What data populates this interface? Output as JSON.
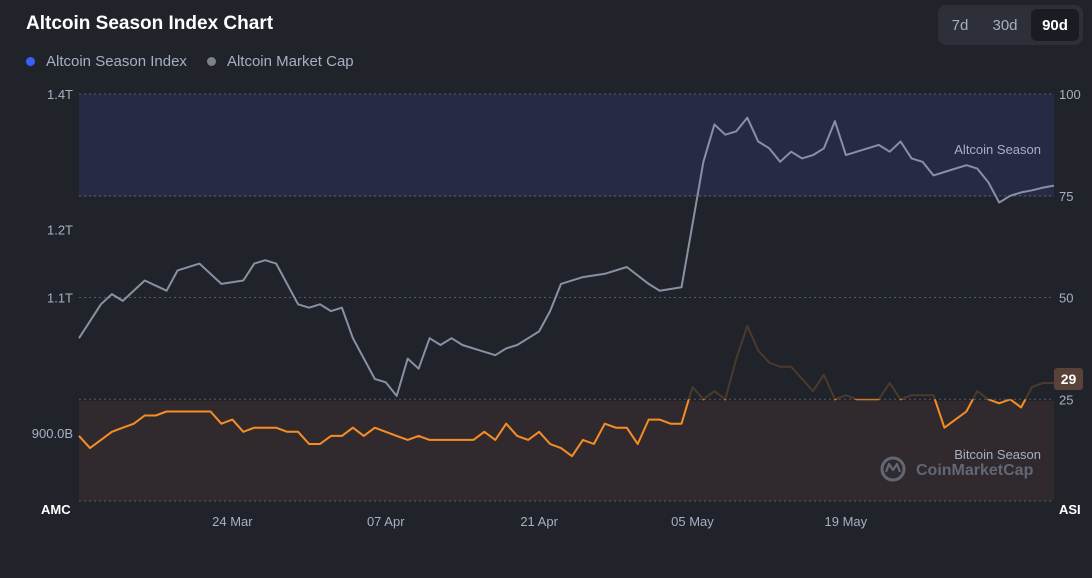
{
  "title": "Altcoin Season Index Chart",
  "range_buttons": [
    {
      "label": "7d",
      "active": false
    },
    {
      "label": "30d",
      "active": false
    },
    {
      "label": "90d",
      "active": true
    }
  ],
  "legend": [
    {
      "label": "Altcoin Season Index",
      "color": "#3861fb"
    },
    {
      "label": "Altcoin Market Cap",
      "color": "#7d818d"
    }
  ],
  "zones": {
    "altcoin_season_label": "Altcoin Season",
    "bitcoin_season_label": "Bitcoin Season"
  },
  "watermark": "CoinMarketCap",
  "axis_titles": {
    "left": "AMC",
    "right": "ASI"
  },
  "current_value_badge": "29",
  "colors": {
    "background": "#21232b",
    "altcoin_zone": "#272a45",
    "bitcoin_zone": "#302a2e",
    "market_cap_line": "#8a90a3",
    "index_line": "#f68d24",
    "index_line_hidden": "#4a3a2e",
    "badge_bg": "#5a4238"
  },
  "chart_data": {
    "type": "line",
    "x_ticks": [
      "24 Mar",
      "07 Apr",
      "21 Apr",
      "05 May",
      "19 May"
    ],
    "left_axis": {
      "ticks": [
        "1.4T",
        "1.2T",
        "1.1T",
        "900.0B"
      ],
      "range": [
        800,
        1400
      ]
    },
    "right_axis": {
      "ticks": [
        "100",
        "75",
        "50",
        "25"
      ],
      "range": [
        0,
        100
      ]
    },
    "x_range": [
      "2025-03-10",
      "2025-06-07"
    ],
    "series": [
      {
        "name": "Altcoin Market Cap",
        "axis": "left",
        "x": [
          "2025-03-10",
          "2025-03-12",
          "2025-03-13",
          "2025-03-14",
          "2025-03-16",
          "2025-03-18",
          "2025-03-19",
          "2025-03-21",
          "2025-03-22",
          "2025-03-23",
          "2025-03-25",
          "2025-03-26",
          "2025-03-27",
          "2025-03-28",
          "2025-03-30",
          "2025-03-31",
          "2025-04-01",
          "2025-04-02",
          "2025-04-03",
          "2025-04-04",
          "2025-04-06",
          "2025-04-07",
          "2025-04-08",
          "2025-04-09",
          "2025-04-10",
          "2025-04-11",
          "2025-04-12",
          "2025-04-13",
          "2025-04-14",
          "2025-04-16",
          "2025-04-17",
          "2025-04-18",
          "2025-04-19",
          "2025-04-20",
          "2025-04-21",
          "2025-04-22",
          "2025-04-23",
          "2025-04-25",
          "2025-04-27",
          "2025-04-29",
          "2025-05-01",
          "2025-05-02",
          "2025-05-04",
          "2025-05-06",
          "2025-05-07",
          "2025-05-08",
          "2025-05-09",
          "2025-05-10",
          "2025-05-11",
          "2025-05-12",
          "2025-05-13",
          "2025-05-14",
          "2025-05-15",
          "2025-05-16",
          "2025-05-17",
          "2025-05-18",
          "2025-05-19",
          "2025-05-20",
          "2025-05-21",
          "2025-05-22",
          "2025-05-23",
          "2025-05-24",
          "2025-05-25",
          "2025-05-26",
          "2025-05-27",
          "2025-05-28",
          "2025-05-30",
          "2025-05-31",
          "2025-06-01",
          "2025-06-02",
          "2025-06-03",
          "2025-06-04",
          "2025-06-05",
          "2025-06-06",
          "2025-06-07"
        ],
        "y": [
          1040,
          1090,
          1105,
          1095,
          1125,
          1110,
          1140,
          1150,
          1135,
          1120,
          1125,
          1150,
          1155,
          1150,
          1090,
          1085,
          1090,
          1080,
          1085,
          1040,
          980,
          975,
          955,
          1010,
          995,
          1040,
          1030,
          1040,
          1030,
          1020,
          1015,
          1025,
          1030,
          1040,
          1050,
          1080,
          1120,
          1130,
          1135,
          1145,
          1120,
          1110,
          1115,
          1300,
          1355,
          1340,
          1345,
          1365,
          1330,
          1320,
          1300,
          1315,
          1305,
          1310,
          1320,
          1360,
          1310,
          1315,
          1320,
          1325,
          1315,
          1330,
          1305,
          1300,
          1280,
          1285,
          1295,
          1290,
          1270,
          1240,
          1250,
          1255,
          1258,
          1262,
          1265
        ]
      },
      {
        "name": "Altcoin Season Index",
        "axis": "right",
        "x": [
          "2025-03-10",
          "2025-03-11",
          "2025-03-12",
          "2025-03-13",
          "2025-03-14",
          "2025-03-15",
          "2025-03-16",
          "2025-03-17",
          "2025-03-18",
          "2025-03-19",
          "2025-03-20",
          "2025-03-21",
          "2025-03-22",
          "2025-03-23",
          "2025-03-24",
          "2025-03-25",
          "2025-03-26",
          "2025-03-27",
          "2025-03-28",
          "2025-03-29",
          "2025-03-30",
          "2025-03-31",
          "2025-04-01",
          "2025-04-02",
          "2025-04-03",
          "2025-04-04",
          "2025-04-05",
          "2025-04-06",
          "2025-04-07",
          "2025-04-08",
          "2025-04-09",
          "2025-04-10",
          "2025-04-11",
          "2025-04-12",
          "2025-04-13",
          "2025-04-14",
          "2025-04-15",
          "2025-04-16",
          "2025-04-17",
          "2025-04-18",
          "2025-04-19",
          "2025-04-20",
          "2025-04-21",
          "2025-04-22",
          "2025-04-23",
          "2025-04-24",
          "2025-04-25",
          "2025-04-26",
          "2025-04-27",
          "2025-04-28",
          "2025-04-29",
          "2025-04-30",
          "2025-05-01",
          "2025-05-02",
          "2025-05-03",
          "2025-05-04",
          "2025-05-05",
          "2025-05-06",
          "2025-05-07",
          "2025-05-08",
          "2025-05-09",
          "2025-05-10",
          "2025-05-11",
          "2025-05-12",
          "2025-05-13",
          "2025-05-14",
          "2025-05-15",
          "2025-05-16",
          "2025-05-17",
          "2025-05-18",
          "2025-05-19",
          "2025-05-20",
          "2025-05-21",
          "2025-05-22",
          "2025-05-23",
          "2025-05-24",
          "2025-05-25",
          "2025-05-26",
          "2025-05-27",
          "2025-05-28",
          "2025-05-29",
          "2025-05-30",
          "2025-05-31",
          "2025-06-01",
          "2025-06-02",
          "2025-06-03",
          "2025-06-04",
          "2025-06-05",
          "2025-06-06",
          "2025-06-07"
        ],
        "y": [
          16,
          13,
          15,
          17,
          18,
          19,
          21,
          21,
          22,
          22,
          22,
          22,
          22,
          19,
          20,
          17,
          18,
          18,
          18,
          17,
          17,
          14,
          14,
          16,
          16,
          18,
          16,
          18,
          17,
          16,
          15,
          16,
          15,
          15,
          15,
          15,
          15,
          17,
          15,
          19,
          16,
          15,
          17,
          14,
          13,
          11,
          15,
          14,
          19,
          18,
          18,
          14,
          20,
          20,
          19,
          19,
          28,
          25,
          27,
          25,
          35,
          43,
          37,
          34,
          33,
          33,
          30,
          27,
          31,
          25,
          26,
          25,
          25,
          25,
          29,
          25,
          26,
          26,
          26,
          18,
          20,
          22,
          27,
          25,
          24,
          25,
          23,
          28,
          29,
          29
        ]
      }
    ],
    "current_value": 29
  }
}
